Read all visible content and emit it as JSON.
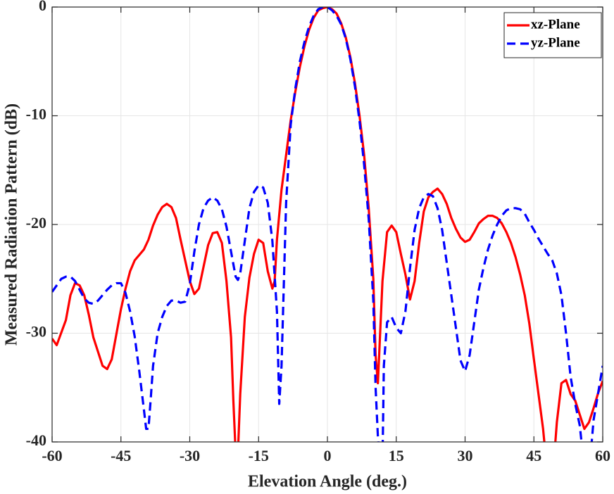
{
  "chart_data": {
    "type": "line",
    "xlabel": "Elevation Angle (deg.)",
    "ylabel": "Measured Radiation Pattern (dB)",
    "xlim": [
      -60,
      60
    ],
    "ylim": [
      -40,
      0
    ],
    "xticks": [
      -60,
      -45,
      -30,
      -15,
      0,
      15,
      30,
      45,
      60
    ],
    "yticks": [
      -40,
      -30,
      -20,
      -10,
      0
    ],
    "grid": true,
    "legend": "northeast",
    "series": [
      {
        "name": "xz-Plane",
        "color": "#ff0000",
        "style": "solid",
        "x": [
          -60,
          -59,
          -57,
          -56,
          -55,
          -54,
          -53,
          -52,
          -51,
          -50,
          -49,
          -48,
          -47,
          -46,
          -45,
          -44,
          -43,
          -42,
          -40,
          -39,
          -38,
          -37,
          -36,
          -35,
          -34,
          -33,
          -32,
          -31,
          -30,
          -29,
          -28,
          -27,
          -26,
          -25,
          -24,
          -23,
          -22,
          -21,
          -20.5,
          -20,
          -19.5,
          -19,
          -18,
          -17,
          -16,
          -15,
          -14,
          -13,
          -12,
          -11.5,
          -11,
          -10,
          -9,
          -8,
          -7,
          -6,
          -5,
          -4,
          -3,
          -2,
          -1,
          0,
          1,
          2,
          3,
          4,
          5,
          6,
          7,
          8,
          9,
          10,
          10.5,
          11,
          12,
          13,
          14,
          15,
          16,
          17,
          18,
          19,
          20,
          21,
          22,
          23,
          24,
          25,
          26,
          27,
          28,
          29,
          30,
          31,
          32,
          33,
          34,
          35,
          36,
          37,
          38,
          39,
          40,
          41,
          42,
          43,
          44,
          45,
          46,
          47,
          47.5,
          49.5,
          50,
          51,
          52,
          53,
          54,
          55,
          56,
          57,
          58,
          59,
          60
        ],
        "values": [
          -30.5,
          -31.1,
          -28.8,
          -26.5,
          -25.4,
          -25.6,
          -26.5,
          -28.3,
          -30.4,
          -31.7,
          -33.0,
          -33.3,
          -32.4,
          -30.1,
          -27.8,
          -25.9,
          -24.3,
          -23.3,
          -22.3,
          -21.4,
          -20.1,
          -19.1,
          -18.4,
          -18.1,
          -18.4,
          -19.4,
          -21.4,
          -23.3,
          -25.2,
          -26.4,
          -25.9,
          -23.9,
          -21.9,
          -20.8,
          -20.7,
          -21.7,
          -25.2,
          -30.4,
          -36.2,
          -41,
          -41,
          -35.6,
          -28.5,
          -24.9,
          -22.7,
          -21.4,
          -21.7,
          -24.3,
          -25.9,
          -25.2,
          -21.4,
          -16.8,
          -13.6,
          -10.4,
          -7.8,
          -5.5,
          -3.6,
          -2.1,
          -1.0,
          -0.3,
          -0.1,
          0,
          -0.2,
          -0.6,
          -1.5,
          -2.8,
          -4.6,
          -7,
          -10,
          -13.6,
          -18.5,
          -25,
          -32,
          -34.6,
          -25.2,
          -20.7,
          -20.1,
          -20.7,
          -22.7,
          -24.6,
          -26.9,
          -25.2,
          -21.7,
          -18.8,
          -17.5,
          -17.0,
          -16.7,
          -17.2,
          -18.1,
          -19.4,
          -20.4,
          -21.2,
          -21.6,
          -21.4,
          -20.7,
          -19.9,
          -19.5,
          -19.2,
          -19.2,
          -19.4,
          -19.9,
          -20.7,
          -21.7,
          -23.0,
          -24.6,
          -26.5,
          -29.1,
          -32.4,
          -35.6,
          -38.8,
          -41,
          -41,
          -38.2,
          -34.6,
          -34.3,
          -35.6,
          -36.2,
          -37.5,
          -38.8,
          -38.2,
          -36.9,
          -35.5,
          -34.4
        ]
      },
      {
        "name": "yz-Plane",
        "color": "#0000ff",
        "style": "dashed",
        "x": [
          -60,
          -59,
          -58,
          -57,
          -56,
          -55,
          -54,
          -53,
          -52,
          -51,
          -50,
          -49,
          -48,
          -47,
          -46,
          -45,
          -44,
          -43,
          -42,
          -41,
          -40,
          -39.5,
          -39,
          -38.5,
          -38,
          -37,
          -36,
          -35,
          -34,
          -33,
          -32,
          -31,
          -30,
          -29,
          -28,
          -27,
          -26,
          -25,
          -24,
          -23,
          -22,
          -21,
          -20,
          -19.5,
          -19,
          -18,
          -17,
          -16,
          -15,
          -14,
          -13,
          -12,
          -11,
          -10.5,
          -10,
          -9,
          -8,
          -7,
          -6,
          -5,
          -4,
          -3,
          -2,
          -1,
          0,
          1,
          2,
          3,
          4,
          5,
          6,
          7,
          8,
          9,
          10,
          10.5,
          11,
          11.5,
          12,
          12.3,
          13,
          14,
          15,
          16,
          17,
          18,
          19,
          20,
          21,
          22,
          23,
          24,
          25,
          26,
          27,
          28,
          29,
          30,
          31,
          32,
          33,
          34,
          35,
          36,
          37,
          38,
          39,
          40,
          41,
          42,
          43,
          44,
          45,
          46,
          47,
          48,
          49,
          50,
          51,
          52,
          53,
          54,
          55,
          55.5,
          56.5,
          57.5,
          58,
          59,
          60
        ],
        "values": [
          -26.2,
          -25.6,
          -25.0,
          -24.8,
          -24.8,
          -25.2,
          -26.0,
          -26.8,
          -27.2,
          -27.3,
          -27.0,
          -26.5,
          -26.0,
          -25.6,
          -25.4,
          -25.4,
          -26.3,
          -28,
          -30.3,
          -33.5,
          -37,
          -38.8,
          -38.8,
          -36,
          -33,
          -30,
          -28.5,
          -27.5,
          -27.0,
          -27.0,
          -27.2,
          -27.1,
          -25.5,
          -22.5,
          -20,
          -18.5,
          -17.8,
          -17.5,
          -17.8,
          -18.6,
          -20.2,
          -22.5,
          -24.8,
          -25.1,
          -24.5,
          -21.5,
          -18.5,
          -17,
          -16.4,
          -16.6,
          -18,
          -21.5,
          -28,
          -36.5,
          -33,
          -18,
          -10.8,
          -7.5,
          -5,
          -3.2,
          -1.8,
          -0.8,
          -0.2,
          0,
          0,
          -0.3,
          -0.8,
          -1.6,
          -2.9,
          -4.8,
          -7.3,
          -10.5,
          -14.5,
          -19.5,
          -27,
          -35,
          -39.5,
          -42,
          -42,
          -33,
          -29,
          -28.5,
          -29.5,
          -30,
          -28,
          -24,
          -20.5,
          -18.5,
          -17.5,
          -17.2,
          -17.4,
          -18.5,
          -20.5,
          -23.5,
          -26.5,
          -29.5,
          -32.5,
          -33.5,
          -32,
          -29,
          -26,
          -24,
          -22.3,
          -21,
          -20,
          -19.2,
          -18.7,
          -18.5,
          -18.5,
          -18.6,
          -19,
          -19.8,
          -20.5,
          -21.3,
          -22,
          -22.7,
          -23.3,
          -24.5,
          -26.5,
          -30,
          -34,
          -36.5,
          -38.5,
          -40.5,
          -41.5,
          -40.5,
          -38,
          -35.5,
          -33
        ]
      }
    ]
  }
}
